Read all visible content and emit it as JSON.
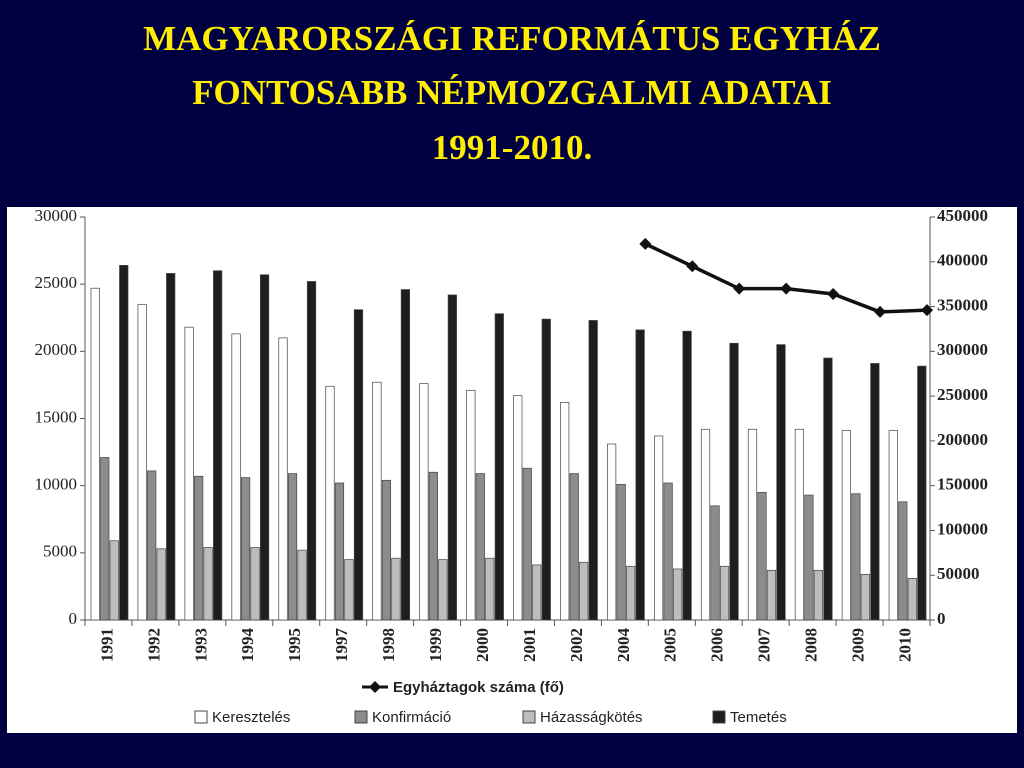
{
  "chart_data": {
    "type": "bar",
    "title": [
      "MAGYARORSZÁGI REFORMÁTUS EGYHÁZ",
      "FONTOSABB NÉPMOZGALMI ADATAI",
      "1991-2010."
    ],
    "categories": [
      "1991",
      "1992",
      "1993",
      "1994",
      "1995",
      "1997",
      "1998",
      "1999",
      "2000",
      "2001",
      "2002",
      "2004",
      "2005",
      "2006",
      "2007",
      "2008",
      "2009",
      "2010"
    ],
    "series": [
      {
        "name": "Keresztelés",
        "color": "#ffffff",
        "values": [
          24700,
          23500,
          21800,
          21300,
          21000,
          17400,
          17700,
          17600,
          17100,
          16700,
          16200,
          13100,
          13700,
          14200,
          14200,
          14200,
          14100,
          14100
        ]
      },
      {
        "name": "Konfirmáció",
        "color": "#8c8c8c",
        "values": [
          12100,
          11100,
          10700,
          10600,
          10900,
          10200,
          10400,
          11000,
          10900,
          11300,
          10900,
          10100,
          10200,
          8500,
          9500,
          9300,
          9400,
          8800
        ]
      },
      {
        "name": "Házasságkötés",
        "color": "#bdbdbd",
        "values": [
          5900,
          5300,
          5400,
          5400,
          5200,
          4500,
          4600,
          4500,
          4600,
          4100,
          4300,
          4000,
          3800,
          4000,
          3700,
          3700,
          3400,
          3100
        ]
      },
      {
        "name": "Temetés",
        "color": "#1e1e1e",
        "values": [
          26400,
          25800,
          26000,
          25700,
          25200,
          23100,
          24600,
          24200,
          22800,
          22400,
          22300,
          21600,
          21500,
          20600,
          20500,
          19500,
          19100,
          18900
        ]
      },
      {
        "name": "Egyháztagok száma (fő)",
        "color": "#111111",
        "type": "line",
        "axis": "y2",
        "values": [
          null,
          null,
          null,
          null,
          null,
          null,
          null,
          null,
          null,
          null,
          null,
          420000,
          395000,
          370000,
          370000,
          364000,
          344000,
          346000
        ]
      }
    ],
    "ylim": [
      0,
      30000
    ],
    "yticks": [
      0,
      5000,
      10000,
      15000,
      20000,
      25000,
      30000
    ],
    "y2lim": [
      0,
      450000
    ],
    "y2ticks": [
      0,
      50000,
      100000,
      150000,
      200000,
      250000,
      300000,
      350000,
      400000,
      450000
    ]
  }
}
